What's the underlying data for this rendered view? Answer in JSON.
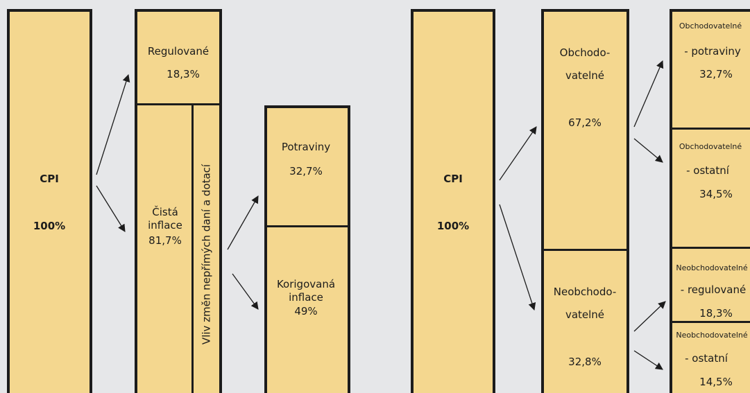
{
  "left": {
    "cpi": {
      "label": "CPI",
      "value": "100%"
    },
    "regulated": {
      "label": "Regulované",
      "value": "18,3%"
    },
    "core": {
      "label1": "Čistá",
      "label2": "inflace",
      "value": "81,7%"
    },
    "tax_effect": {
      "label": "Vliv změn nepřímých daní a dotací"
    },
    "food": {
      "label": "Potraviny",
      "value": "32,7%"
    },
    "adjusted": {
      "label1": "Korigovaná",
      "label2": "inflace",
      "value": "49%"
    }
  },
  "right": {
    "cpi": {
      "label": "CPI",
      "value": "100%"
    },
    "tradable": {
      "label1": "Obchodo-",
      "label2": "vatelné",
      "value": "67,2%"
    },
    "nontradable": {
      "label1": "Neobchodo-",
      "label2": "vatelné",
      "value": "32,8%"
    },
    "tradable_food": {
      "label1": "Obchodovatelné",
      "label2": "- potraviny",
      "value": "32,7%"
    },
    "tradable_other": {
      "label1": "Obchodovatelné",
      "label2": "- ostatní",
      "value": "34,5%"
    },
    "nontradable_regulated": {
      "label1": "Neobchodovatelné",
      "label2": "- regulované",
      "value": "18,3%"
    },
    "nontradable_other": {
      "label1": "Neobchodovatelné",
      "label2": "- ostatní",
      "value": "14,5%"
    }
  },
  "colors": {
    "box_fill": "#f4d78f",
    "border": "#1c1c1c",
    "background": "#e6e7e9"
  }
}
